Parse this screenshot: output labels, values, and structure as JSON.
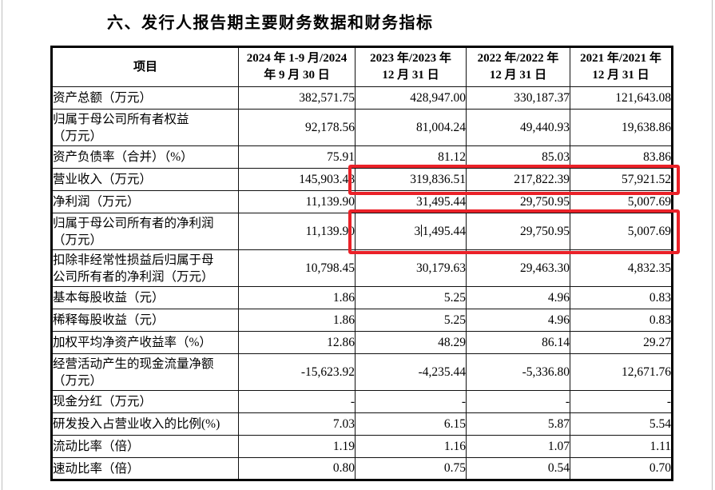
{
  "page": {
    "title": "六、发行人报告期主要财务数据和财务指标"
  },
  "table": {
    "header": {
      "item": "项目",
      "periods": [
        "2024 年 1-9 月/2024\n年 9 月 30 日",
        "2023 年/2023 年\n12 月 31 日",
        "2022 年/2022 年\n12 月 31 日",
        "2021 年/2021 年\n12 月 31 日"
      ]
    },
    "rows": [
      {
        "label": "资产总额（万元）",
        "values": [
          "382,571.75",
          "428,947.00",
          "330,187.37",
          "121,643.08"
        ]
      },
      {
        "label": "归属于母公司所有者权益\n（万元）",
        "values": [
          "92,178.56",
          "81,004.24",
          "49,440.93",
          "19,638.86"
        ]
      },
      {
        "label": "资产负债率（合并）（%）",
        "values": [
          "75.91",
          "81.12",
          "85.03",
          "83.86"
        ]
      },
      {
        "label": "营业收入（万元）",
        "values": [
          "145,903.48",
          "319,836.51",
          "217,822.39",
          "57,921.52"
        ]
      },
      {
        "label": "净利润（万元）",
        "values": [
          "11,139.90",
          "31,495.44",
          "29,750.95",
          "5,007.69"
        ]
      },
      {
        "label": "归属于母公司所有者的净利润\n（万元）",
        "values": [
          "11,139.90",
          "31,495.44",
          "29,750.95",
          "5,007.69"
        ]
      },
      {
        "label": "扣除非经常性损益后归属于母\n公司所有者的净利润（万元）",
        "values": [
          "10,798.45",
          "30,179.63",
          "29,463.30",
          "4,832.35"
        ]
      },
      {
        "label": "基本每股收益（元）",
        "values": [
          "1.86",
          "5.25",
          "4.96",
          "0.83"
        ]
      },
      {
        "label": "稀释每股收益（元）",
        "values": [
          "1.86",
          "5.25",
          "4.96",
          "0.83"
        ]
      },
      {
        "label": "加权平均净资产收益率（%）",
        "values": [
          "12.86",
          "48.29",
          "86.14",
          "29.27"
        ]
      },
      {
        "label": "经营活动产生的现金流量净额\n（万元）",
        "values": [
          "-15,623.92",
          "-4,235.44",
          "-5,336.80",
          "12,671.76"
        ]
      },
      {
        "label": "现金分红（万元）",
        "values": [
          "-",
          "-",
          "-",
          "-"
        ]
      },
      {
        "label": "研发投入占营业收入的比例(%)",
        "values": [
          "7.03",
          "6.15",
          "5.87",
          "5.54"
        ]
      },
      {
        "label": "流动比率（倍）",
        "values": [
          "1.19",
          "1.16",
          "1.07",
          "1.11"
        ]
      },
      {
        "label": "速动比率（倍）",
        "values": [
          "0.80",
          "0.75",
          "0.54",
          "0.70"
        ]
      }
    ]
  },
  "annotations": {
    "highlight_color": "#ea2128",
    "highlighted_rows": [
      {
        "row_label": "营业收入（万元）",
        "columns_covered": [
          "319,836.51",
          "217,822.39",
          "57,921.52"
        ]
      },
      {
        "row_label": "归属于母公司所有者的净利润（万元）",
        "columns_covered": [
          "31,495.44",
          "29,750.95",
          "5,007.69"
        ]
      }
    ],
    "text_cursor": {
      "row_index": 5,
      "col_index": 1,
      "after_chars": 1,
      "cell_value": "31,495.44"
    }
  }
}
